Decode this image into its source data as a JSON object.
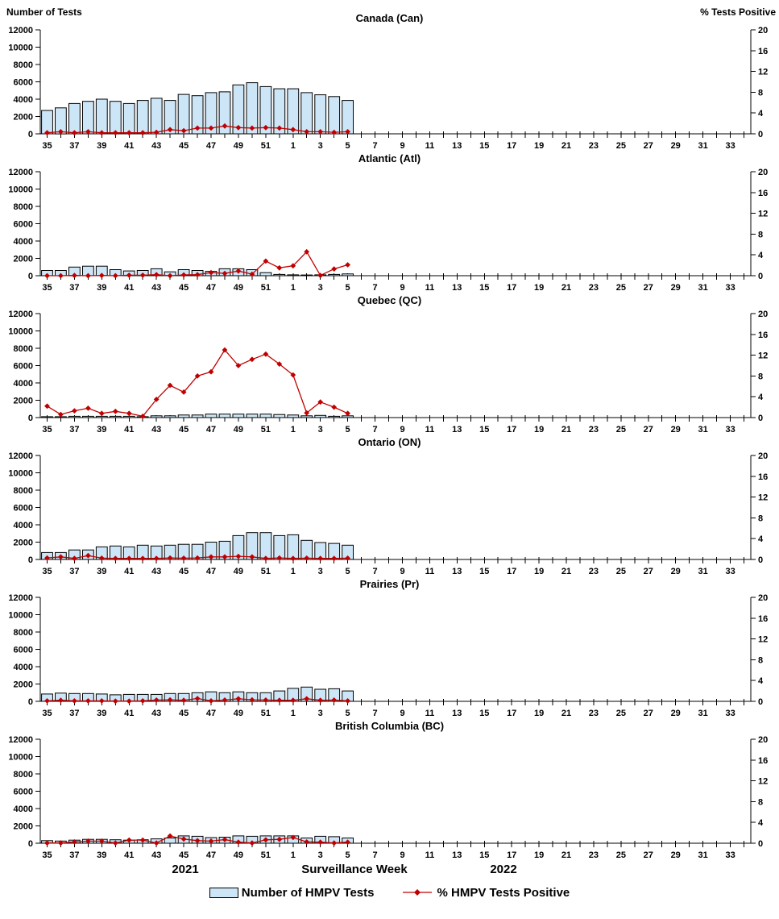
{
  "header": {
    "left_axis_title": "Number of Tests",
    "right_axis_title": "% Tests Positive"
  },
  "xaxis": {
    "year_left": "2021",
    "title": "Surveillance Week",
    "year_right": "2022"
  },
  "legend": {
    "bars_label": "Number of HMPV Tests",
    "line_label": "% HMPV Tests Positive"
  },
  "colors": {
    "bar_fill": "#CDE6F7",
    "bar_border": "#000000",
    "line": "#C00000",
    "text": "#000000"
  },
  "chart_data": {
    "type": "bar+line",
    "title": "HMPV tests and percent positive by surveillance week, Canada and regions",
    "x_weeks_axis": [
      35,
      36,
      37,
      38,
      39,
      40,
      41,
      42,
      43,
      44,
      45,
      46,
      47,
      48,
      49,
      50,
      51,
      52,
      1,
      2,
      3,
      4,
      5,
      6,
      7,
      8,
      9,
      10,
      11,
      12,
      13,
      14,
      15,
      16,
      17,
      18,
      19,
      20,
      21,
      22,
      23,
      24,
      25,
      26,
      27,
      28,
      29,
      30,
      31,
      32,
      33,
      34
    ],
    "weeks_with_data": [
      35,
      36,
      37,
      38,
      39,
      40,
      41,
      42,
      43,
      44,
      45,
      46,
      47,
      48,
      49,
      50,
      51,
      52,
      1,
      2,
      3,
      4,
      5
    ],
    "left_axis": {
      "label": "Number of Tests",
      "lim": [
        0,
        12000
      ],
      "ticks": [
        0,
        2000,
        4000,
        6000,
        8000,
        10000,
        12000
      ]
    },
    "right_axis": {
      "label": "% Tests Positive",
      "lim": [
        0,
        20
      ],
      "ticks": [
        0,
        4,
        8,
        12,
        16,
        20
      ]
    },
    "grid": false,
    "legend_position": "bottom",
    "panels": [
      {
        "id": "canada",
        "title": "Canada (Can)",
        "tests": [
          2700,
          3000,
          3500,
          3750,
          4000,
          3750,
          3500,
          3850,
          4100,
          3850,
          4550,
          4400,
          4750,
          4850,
          5650,
          5900,
          5450,
          5200,
          5200,
          4750,
          4500,
          4300,
          3850
        ],
        "pct_positive": [
          0.2,
          0.4,
          0.2,
          0.4,
          0.2,
          0.2,
          0.2,
          0.2,
          0.3,
          0.8,
          0.6,
          1.1,
          1.1,
          1.5,
          1.2,
          1.1,
          1.2,
          1.1,
          0.8,
          0.4,
          0.4,
          0.3,
          0.4
        ]
      },
      {
        "id": "atlantic",
        "title": "Atlantic (Atl)",
        "tests": [
          600,
          600,
          1000,
          1100,
          1100,
          700,
          550,
          600,
          800,
          450,
          700,
          600,
          500,
          800,
          800,
          700,
          350,
          150,
          100,
          80,
          100,
          150,
          200
        ],
        "pct_positive": [
          0,
          0,
          0.05,
          0,
          0.05,
          0,
          0.1,
          0.1,
          0.2,
          0,
          0.15,
          0.2,
          0.6,
          0.45,
          0.9,
          0.3,
          2.8,
          1.5,
          1.9,
          4.6,
          0.05,
          1.3,
          2.1
        ]
      },
      {
        "id": "quebec",
        "title": "Quebec (QC)",
        "tests": [
          100,
          100,
          150,
          150,
          150,
          150,
          150,
          100,
          200,
          200,
          300,
          300,
          400,
          400,
          400,
          400,
          400,
          350,
          300,
          200,
          250,
          150,
          200
        ],
        "pct_positive": [
          2.2,
          0.6,
          1.3,
          1.8,
          0.8,
          1.2,
          0.8,
          0.25,
          3.5,
          6.2,
          4.9,
          8.0,
          8.8,
          13.0,
          10.0,
          11.2,
          12.2,
          10.3,
          8.2,
          0.9,
          3.0,
          2.0,
          0.8
        ]
      },
      {
        "id": "ontario",
        "title": "Ontario (ON)",
        "tests": [
          800,
          800,
          1100,
          1100,
          1450,
          1550,
          1450,
          1650,
          1550,
          1650,
          1750,
          1750,
          2000,
          2100,
          2750,
          3100,
          3100,
          2750,
          2850,
          2200,
          1950,
          1850,
          1650
        ],
        "pct_positive": [
          0.3,
          0.5,
          0.2,
          0.75,
          0.25,
          0.2,
          0.2,
          0.2,
          0.2,
          0.3,
          0.25,
          0.3,
          0.5,
          0.5,
          0.6,
          0.5,
          0.2,
          0.3,
          0.2,
          0.25,
          0.2,
          0.2,
          0.25
        ]
      },
      {
        "id": "prairies",
        "title": "Prairies (Pr)",
        "tests": [
          850,
          950,
          900,
          900,
          850,
          750,
          800,
          800,
          800,
          900,
          900,
          1000,
          1100,
          1000,
          1100,
          1000,
          1000,
          1200,
          1500,
          1650,
          1400,
          1450,
          1200
        ],
        "pct_positive": [
          0.1,
          0.2,
          0.1,
          0.1,
          0.1,
          0.05,
          0.05,
          0.1,
          0.25,
          0.3,
          0.2,
          0.55,
          0.1,
          0.25,
          0.5,
          0.3,
          0.25,
          0.2,
          0.2,
          0.5,
          0.2,
          0.25,
          0.1
        ]
      },
      {
        "id": "bc",
        "title": "British Columbia (BC)",
        "tests": [
          300,
          250,
          350,
          450,
          450,
          400,
          350,
          400,
          500,
          600,
          850,
          800,
          650,
          700,
          850,
          800,
          850,
          850,
          850,
          600,
          800,
          750,
          600
        ],
        "pct_positive": [
          0.05,
          0.05,
          0.25,
          0.4,
          0.4,
          0.05,
          0.6,
          0.6,
          0.05,
          1.4,
          0.8,
          0.5,
          0.4,
          0.7,
          0.2,
          0.05,
          0.65,
          0.75,
          1.1,
          0.25,
          0.2,
          0.05,
          0.2
        ]
      }
    ]
  }
}
